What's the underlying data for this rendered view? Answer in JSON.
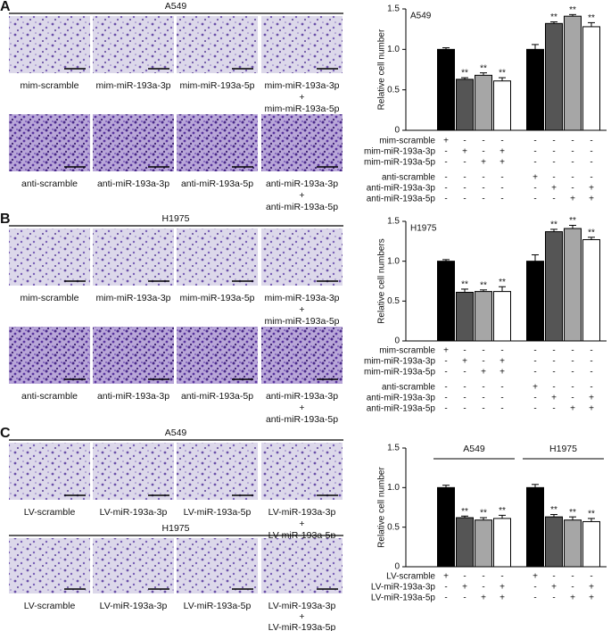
{
  "panels": [
    {
      "label": "A",
      "rows": [
        {
          "title": "A549",
          "captions": [
            [
              "mim-scramble"
            ],
            [
              "mim-miR-193a-3p"
            ],
            [
              "mim-miR-193a-5p"
            ],
            [
              "mim-miR-193a-3p",
              "+",
              "mim-miR-193a-5p"
            ]
          ]
        },
        {
          "title": null,
          "captions": [
            [
              "anti-scramble"
            ],
            [
              "anti-miR-193a-3p"
            ],
            [
              "anti-miR-193a-5p"
            ],
            [
              "anti-miR-193a-3p",
              "+",
              "anti-miR-193a-5p"
            ]
          ]
        }
      ]
    },
    {
      "label": "B",
      "rows": [
        {
          "title": "H1975",
          "captions": [
            [
              "mim-scramble"
            ],
            [
              "mim-miR-193a-3p"
            ],
            [
              "mim-miR-193a-5p"
            ],
            [
              "mim-miR-193a-3p",
              "+",
              "mim-miR-193a-5p"
            ]
          ]
        },
        {
          "title": null,
          "captions": [
            [
              "anti-scramble"
            ],
            [
              "anti-miR-193a-3p"
            ],
            [
              "anti-miR-193a-5p"
            ],
            [
              "anti-miR-193a-3p",
              "+",
              "anti-miR-193a-5p"
            ]
          ]
        }
      ]
    },
    {
      "label": "C",
      "rows": [
        {
          "title": "A549",
          "captions": [
            [
              "LV-scramble"
            ],
            [
              "LV-miR-193a-3p"
            ],
            [
              "LV-miR-193a-5p"
            ],
            [
              "LV-miR-193a-3p",
              "+",
              "LV-miR-193a-5p"
            ]
          ]
        },
        {
          "title": "H1975",
          "captions": [
            [
              "LV-scramble"
            ],
            [
              "LV-miR-193a-3p"
            ],
            [
              "LV-miR-193a-5p"
            ],
            [
              "LV-miR-193a-3p",
              "+",
              "LV-miR-193a-5p"
            ]
          ]
        }
      ]
    }
  ],
  "chart_data": [
    {
      "type": "bar",
      "inset_label": "A549",
      "y_label": "Relative cell number",
      "categories": [
        null,
        null,
        null,
        null,
        null,
        null,
        null,
        null
      ],
      "values": [
        1.0,
        0.63,
        0.68,
        0.61,
        1.0,
        1.32,
        1.41,
        1.28
      ],
      "errors": [
        0.02,
        0.02,
        0.03,
        0.04,
        0.06,
        0.02,
        0.02,
        0.05
      ],
      "colors": [
        "#000000",
        "#555555",
        "#a6a6a6",
        "#ffffff",
        "#000000",
        "#555555",
        "#a6a6a6",
        "#ffffff"
      ],
      "annotations": [
        null,
        "**",
        "**",
        "**",
        null,
        "**",
        "**",
        "**"
      ],
      "ylim": [
        0,
        1.5
      ],
      "yticks": [
        0,
        0.5,
        {
          "value": 1,
          "label": "1.0"
        },
        1.5
      ],
      "conditions": [
        {
          "label": "mim-scramble",
          "signs": [
            "+",
            "-",
            "-",
            "-",
            "-",
            "-",
            "-",
            "-"
          ]
        },
        {
          "label": "mim-miR-193a-3p",
          "signs": [
            "-",
            "+",
            "-",
            "+",
            "-",
            "-",
            "-",
            "-"
          ]
        },
        {
          "label": "mim-miR-193a-5p",
          "signs": [
            "-",
            "-",
            "+",
            "+",
            "-",
            "-",
            "-",
            "-"
          ]
        },
        {
          "label": "anti-scramble",
          "signs": [
            "-",
            "-",
            "-",
            "-",
            "+",
            "-",
            "-",
            "-"
          ]
        },
        {
          "label": "anti-miR-193a-3p",
          "signs": [
            "-",
            "-",
            "-",
            "-",
            "-",
            "+",
            "-",
            "+"
          ]
        },
        {
          "label": "anti-miR-193a-5p",
          "signs": [
            "-",
            "-",
            "-",
            "-",
            "-",
            "-",
            "+",
            "+"
          ]
        }
      ]
    },
    {
      "type": "bar",
      "inset_label": "H1975",
      "y_label": "Relative cell numbers",
      "categories": [
        null,
        null,
        null,
        null,
        null,
        null,
        null,
        null
      ],
      "values": [
        1.0,
        0.61,
        0.62,
        0.62,
        1.0,
        1.37,
        1.41,
        1.27
      ],
      "errors": [
        0.02,
        0.04,
        0.02,
        0.06,
        0.08,
        0.03,
        0.04,
        0.03
      ],
      "colors": [
        "#000000",
        "#555555",
        "#a6a6a6",
        "#ffffff",
        "#000000",
        "#555555",
        "#a6a6a6",
        "#ffffff"
      ],
      "annotations": [
        null,
        "**",
        "**",
        "**",
        null,
        "**",
        "**",
        "**"
      ],
      "ylim": [
        0,
        1.5
      ],
      "yticks": [
        0,
        0.5,
        {
          "value": 1,
          "label": "1.0"
        },
        1.5
      ],
      "conditions": [
        {
          "label": "mim-scramble",
          "signs": [
            "+",
            "-",
            "-",
            "-",
            "-",
            "-",
            "-",
            "-"
          ]
        },
        {
          "label": "mim-miR-193a-3p",
          "signs": [
            "-",
            "+",
            "-",
            "+",
            "-",
            "-",
            "-",
            "-"
          ]
        },
        {
          "label": "mim-miR-193a-5p",
          "signs": [
            "-",
            "-",
            "+",
            "+",
            "-",
            "-",
            "-",
            "-"
          ]
        },
        {
          "label": "anti-scramble",
          "signs": [
            "-",
            "-",
            "-",
            "-",
            "+",
            "-",
            "-",
            "-"
          ]
        },
        {
          "label": "anti-miR-193a-3p",
          "signs": [
            "-",
            "-",
            "-",
            "-",
            "-",
            "+",
            "-",
            "+"
          ]
        },
        {
          "label": "anti-miR-193a-5p",
          "signs": [
            "-",
            "-",
            "-",
            "-",
            "-",
            "-",
            "+",
            "+"
          ]
        }
      ]
    },
    {
      "type": "bar",
      "y_label": "Relative cell number",
      "groups": [
        "A549",
        "H1975"
      ],
      "categories": [
        null,
        null,
        null,
        null,
        null,
        null,
        null,
        null
      ],
      "values": [
        1.0,
        0.62,
        0.59,
        0.61,
        1.0,
        0.63,
        0.59,
        0.57
      ],
      "errors": [
        0.03,
        0.02,
        0.03,
        0.04,
        0.04,
        0.03,
        0.04,
        0.04
      ],
      "colors": [
        "#000000",
        "#555555",
        "#a6a6a6",
        "#ffffff",
        "#000000",
        "#555555",
        "#a6a6a6",
        "#ffffff"
      ],
      "annotations": [
        null,
        "**",
        "**",
        "**",
        null,
        "**",
        "**",
        "**"
      ],
      "ylim": [
        0,
        1.5
      ],
      "yticks": [
        0,
        0.5,
        {
          "value": 1,
          "label": "1.0"
        },
        1.5
      ],
      "conditions": [
        {
          "label": "LV-scramble",
          "signs": [
            "+",
            "-",
            "-",
            "-",
            "+",
            "-",
            "-",
            "-"
          ]
        },
        {
          "label": "LV-miR-193a-3p",
          "signs": [
            "-",
            "+",
            "-",
            "+",
            "-",
            "+",
            "-",
            "+"
          ]
        },
        {
          "label": "LV-miR-193a-5p",
          "signs": [
            "-",
            "-",
            "+",
            "+",
            "-",
            "-",
            "+",
            "+"
          ]
        }
      ]
    }
  ]
}
